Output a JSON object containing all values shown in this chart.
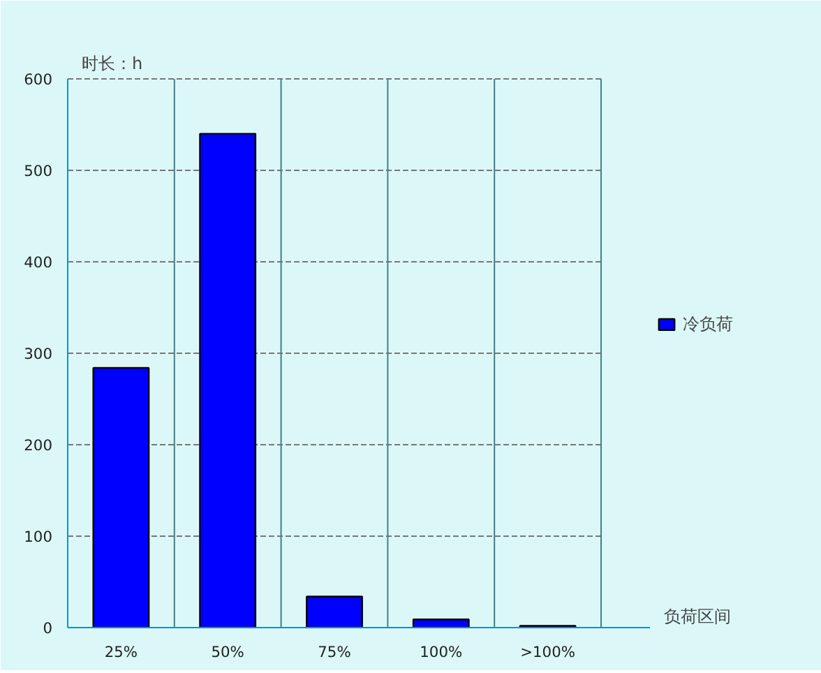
{
  "chart_data": {
    "type": "bar",
    "xlabel": "负荷区间",
    "ylabel": "时长：h",
    "categories": [
      "25%",
      "50%",
      "75%",
      "100%",
      ">100%"
    ],
    "series": [
      {
        "name": "冷负荷",
        "color": "#0000ff",
        "values": [
          284,
          540,
          34,
          9,
          2
        ]
      }
    ],
    "ylim": [
      0,
      600
    ],
    "yticks": [
      0,
      100,
      200,
      300,
      400,
      500,
      600
    ],
    "grid": true,
    "legend": "right"
  }
}
